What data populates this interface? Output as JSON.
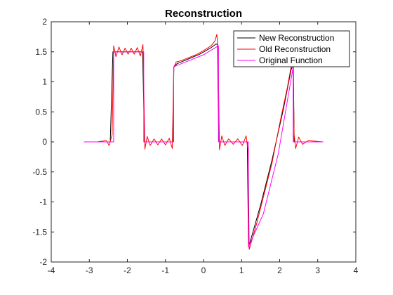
{
  "chart_data": {
    "type": "line",
    "title": "Reconstruction",
    "xlabel": "",
    "ylabel": "",
    "xlim": [
      -4,
      4
    ],
    "ylim": [
      -2,
      2
    ],
    "xticks": [
      -4,
      -3,
      -2,
      -1,
      0,
      1,
      2,
      3,
      4
    ],
    "yticks": [
      -2,
      -1.5,
      -1,
      -0.5,
      0,
      0.5,
      1,
      1.5,
      2
    ],
    "xtick_labels": [
      "-4",
      "-3",
      "-2",
      "-1",
      "0",
      "1",
      "2",
      "3",
      "4"
    ],
    "ytick_labels": [
      "-2",
      "-1.5",
      "-1",
      "-0.5",
      "0",
      "0.5",
      "1",
      "1.5",
      "2"
    ],
    "grid": false,
    "legend_position": "top-right",
    "series": [
      {
        "name": "New Reconstruction",
        "color": "#000000",
        "x": [
          -3.14,
          -2.8,
          -2.45,
          -2.38,
          -2.3,
          -2.0,
          -1.7,
          -1.6,
          -1.55,
          -1.2,
          -0.8,
          -0.78,
          -0.7,
          -0.4,
          -0.1,
          0.2,
          0.33,
          0.37,
          0.4,
          0.7,
          1.0,
          1.15,
          1.18,
          1.2,
          1.5,
          1.8,
          2.1,
          2.3,
          2.36,
          2.38,
          2.7,
          3.14
        ],
        "y": [
          0,
          0,
          0,
          1.5,
          1.5,
          1.5,
          1.5,
          1.5,
          0,
          0,
          0,
          1.25,
          1.3,
          1.38,
          1.46,
          1.57,
          1.63,
          1.62,
          0,
          0,
          0,
          0,
          -1.68,
          -1.72,
          -1.05,
          -0.3,
          0.55,
          1.2,
          1.3,
          0,
          0,
          0
        ]
      },
      {
        "name": "Old Reconstruction",
        "color": "#ff0000",
        "x": [
          -3.14,
          -2.8,
          -2.55,
          -2.48,
          -2.4,
          -2.36,
          -2.3,
          -2.22,
          -2.14,
          -2.06,
          -1.98,
          -1.9,
          -1.82,
          -1.74,
          -1.66,
          -1.59,
          -1.54,
          -1.48,
          -1.4,
          -1.3,
          -1.2,
          -1.1,
          -1.0,
          -0.9,
          -0.82,
          -0.78,
          -0.72,
          -0.6,
          -0.4,
          -0.2,
          0.0,
          0.2,
          0.3,
          0.35,
          0.38,
          0.42,
          0.48,
          0.56,
          0.66,
          0.78,
          0.9,
          1.02,
          1.12,
          1.17,
          1.2,
          1.25,
          1.4,
          1.6,
          1.8,
          2.0,
          2.2,
          2.3,
          2.35,
          2.38,
          2.42,
          2.5,
          2.6,
          2.75,
          3.14
        ],
        "y": [
          0,
          0,
          0.02,
          -0.06,
          0.12,
          1.6,
          1.42,
          1.58,
          1.45,
          1.56,
          1.46,
          1.56,
          1.46,
          1.57,
          1.43,
          1.62,
          -0.12,
          0.09,
          -0.06,
          0.05,
          -0.05,
          0.05,
          -0.05,
          0.06,
          -0.11,
          1.24,
          1.33,
          1.35,
          1.4,
          1.45,
          1.52,
          1.6,
          1.68,
          1.79,
          1.55,
          -0.13,
          0.1,
          -0.06,
          0.05,
          -0.04,
          0.05,
          -0.06,
          0.1,
          -0.15,
          -1.79,
          -1.68,
          -1.35,
          -0.85,
          -0.35,
          0.3,
          0.9,
          1.25,
          1.36,
          0.12,
          -0.11,
          0.08,
          -0.04,
          0.02,
          0
        ]
      },
      {
        "name": "Original Function",
        "color": "#ff00ff",
        "x": [
          -3.14,
          -2.36,
          -2.36,
          -1.57,
          -1.57,
          -0.785,
          -0.785,
          0.0,
          0.393,
          0.393,
          1.178,
          1.178,
          1.571,
          1.963,
          2.356,
          2.356,
          3.14
        ],
        "y": [
          0,
          0,
          1.5,
          1.5,
          0,
          0,
          1.25,
          1.45,
          1.6,
          0,
          0,
          -1.75,
          -1.2,
          -0.2,
          1.25,
          0,
          0
        ]
      }
    ]
  }
}
